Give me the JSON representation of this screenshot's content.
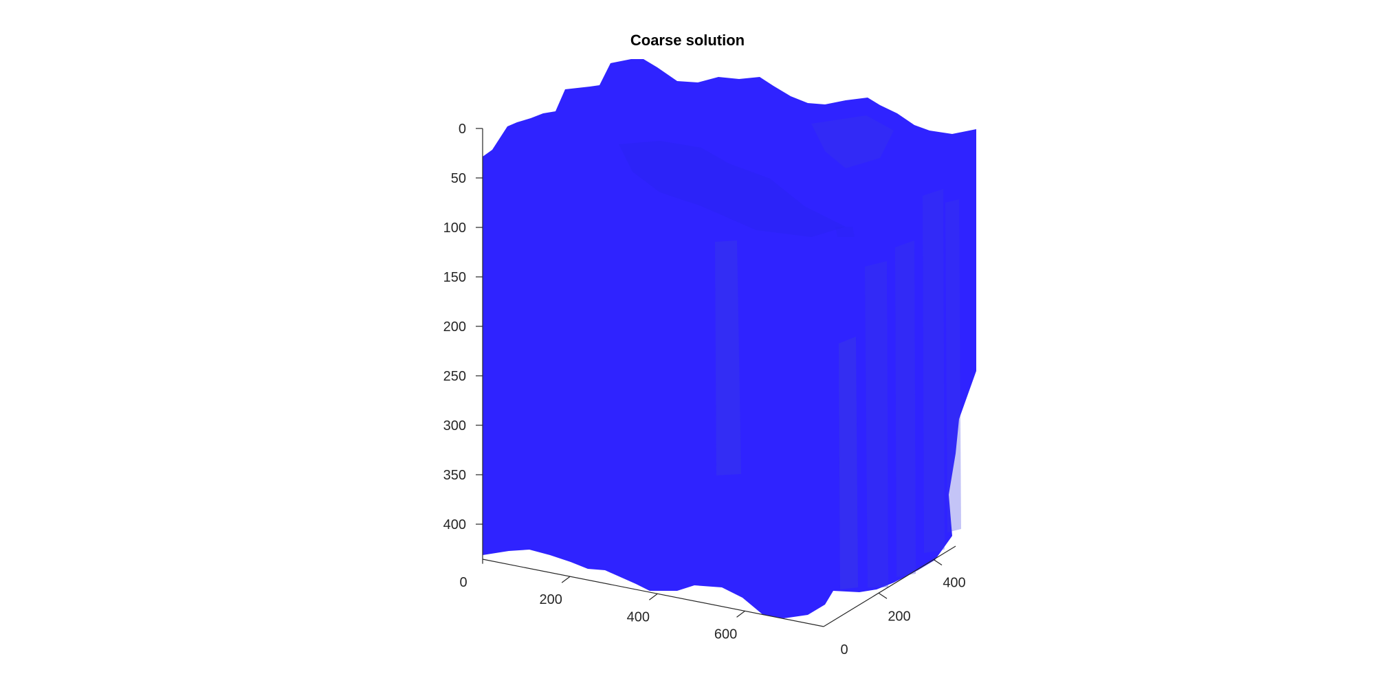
{
  "chart_data": {
    "type": "surface3d",
    "title": "Coarse solution",
    "view": "3-D oblique, depth axis reversed (0 at top)",
    "x_axis": {
      "ticks": [
        0,
        200,
        400,
        600
      ],
      "range": [
        0,
        780
      ]
    },
    "y_axis": {
      "ticks": [
        0,
        200,
        400
      ],
      "range": [
        0,
        480
      ]
    },
    "z_axis": {
      "ticks": [
        0,
        50,
        100,
        150,
        200,
        250,
        300,
        350,
        400
      ],
      "range": [
        0,
        440
      ],
      "reversed": true
    },
    "colors": {
      "volume": "#2f23ff",
      "volume_shade": "#2a24f0",
      "inner_shade": "#3a3ae6",
      "axis": "#262626"
    },
    "grid": false,
    "legend": "none"
  }
}
